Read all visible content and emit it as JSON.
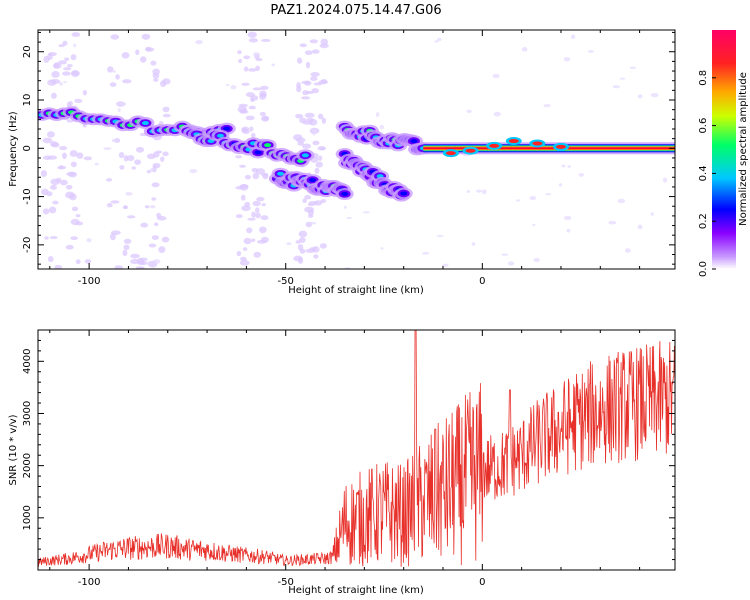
{
  "title": "PAZ1.2024.075.14.47.G06",
  "chart_data": [
    {
      "type": "heatmap",
      "xlabel": "Height of straight line (km)",
      "ylabel": "Frequency (Hz)",
      "xlim": [
        -113,
        49
      ],
      "ylim": [
        -25,
        24.5
      ],
      "xticks": [
        -100,
        -50,
        0
      ],
      "yticks": [
        20,
        10,
        0,
        -10,
        -20
      ],
      "colorbar": {
        "label": "Normalized spectral amplitude",
        "range": [
          0,
          1
        ],
        "ticks": [
          0.0,
          0.2,
          0.4,
          0.6,
          0.8
        ],
        "colormap": [
          "#ffffff",
          "#c89bff",
          "#8a00ff",
          "#0000ff",
          "#00c8ff",
          "#00ff66",
          "#ccff00",
          "#ffaa00",
          "#ff2222",
          "#ff0066"
        ]
      },
      "features": [
        {
          "segment": "upper branch",
          "x": [
            -112,
            -65
          ],
          "y": [
            7,
            3
          ],
          "amplitude": 0.45
        },
        {
          "segment": "middle branch",
          "x": [
            -75,
            -45
          ],
          "y": [
            3,
            -2
          ],
          "amplitude": 0.4
        },
        {
          "segment": "lower branch",
          "x": [
            -52,
            -35
          ],
          "y": [
            -6,
            -9
          ],
          "amplitude": 0.35
        },
        {
          "segment": "descending tail",
          "x": [
            -35,
            -20
          ],
          "y": [
            -2,
            -10
          ],
          "amplitude": 0.25
        },
        {
          "segment": "convergence",
          "x": [
            -35,
            -15
          ],
          "y": [
            4,
            0
          ],
          "amplitude": 0.4
        },
        {
          "segment": "strong line",
          "x": [
            -15,
            49
          ],
          "y": [
            0,
            0
          ],
          "amplitude": 0.95
        }
      ]
    },
    {
      "type": "line",
      "xlabel": "Height of straight line (km)",
      "ylabel": "SNR (10 * v/v)",
      "xlim": [
        -113,
        49
      ],
      "ylim": [
        0,
        4600
      ],
      "xticks": [
        -100,
        -50,
        0
      ],
      "yticks": [
        1000,
        2000,
        3000,
        4000
      ],
      "color": "#e8302a",
      "series": [
        {
          "x": [
            -113,
            -105,
            -100,
            -95,
            -90,
            -85,
            -80,
            -75,
            -70,
            -65,
            -60,
            -55,
            -50,
            -45,
            -40,
            -38,
            -35,
            -30,
            -25,
            -20,
            -17,
            -15,
            -10,
            -5,
            0,
            5,
            10,
            15,
            20,
            25,
            30,
            35,
            40,
            45,
            49
          ],
          "values": [
            150,
            220,
            300,
            380,
            420,
            440,
            460,
            400,
            380,
            320,
            280,
            250,
            180,
            200,
            220,
            250,
            900,
            1000,
            1100,
            1050,
            1200,
            1300,
            1500,
            1700,
            1900,
            2000,
            2200,
            2500,
            2700,
            2900,
            3050,
            3150,
            3200,
            3250,
            3300
          ]
        }
      ],
      "peaks": [
        {
          "x": -17,
          "value": 4600
        },
        {
          "x": -12,
          "value": 2700
        },
        {
          "x": 7,
          "value": 3450
        }
      ]
    }
  ]
}
